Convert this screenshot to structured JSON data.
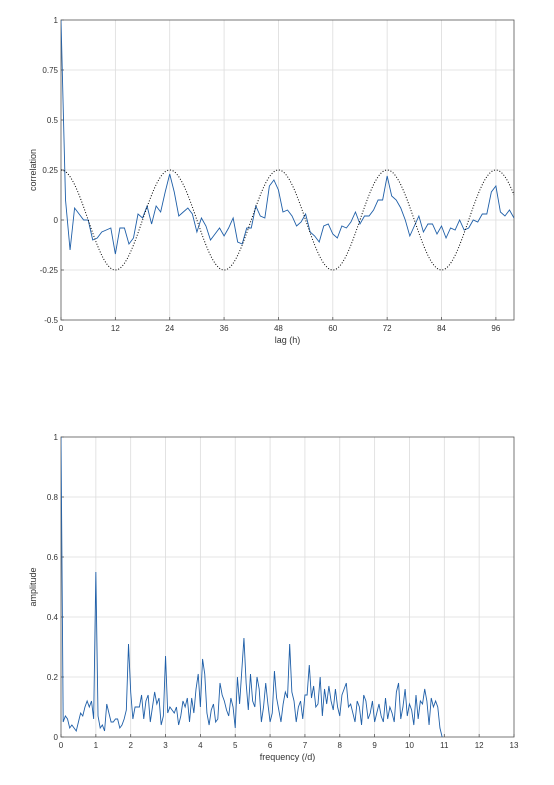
{
  "chart_data": [
    {
      "type": "line",
      "title": "",
      "xlabel": "lag (h)",
      "ylabel": "correlation",
      "xlim": [
        0,
        100
      ],
      "ylim": [
        -0.5,
        1
      ],
      "xticks": [
        0,
        12,
        24,
        36,
        48,
        60,
        72,
        84,
        96
      ],
      "yticks": [
        -0.5,
        -0.25,
        0,
        0.25,
        0.5,
        0.75,
        1
      ],
      "ytick_labels": [
        "-0.5",
        "-0.25",
        "0",
        "0.25",
        "0.5",
        "0.75",
        "1"
      ],
      "grid": true,
      "series": [
        {
          "style": "solid",
          "color": "#1f5fa8",
          "x": [
            0,
            1,
            2,
            3,
            4,
            5,
            6,
            7,
            8,
            9,
            10,
            11,
            12,
            13,
            14,
            15,
            16,
            17,
            18,
            19,
            20,
            21,
            22,
            23,
            24,
            25,
            26,
            27,
            28,
            29,
            30,
            31,
            32,
            33,
            34,
            35,
            36,
            37,
            38,
            39,
            40,
            41,
            42,
            43,
            44,
            45,
            46,
            47,
            48,
            49,
            50,
            51,
            52,
            53,
            54,
            55,
            56,
            57,
            58,
            59,
            60,
            61,
            62,
            63,
            64,
            65,
            66,
            67,
            68,
            69,
            70,
            71,
            72,
            73,
            74,
            75,
            76,
            77,
            78,
            79,
            80,
            81,
            82,
            83,
            84,
            85,
            86,
            87,
            88,
            89,
            90,
            91,
            92,
            93,
            94,
            95,
            96,
            97,
            98,
            99,
            100
          ],
          "values": [
            1,
            0.1,
            -0.15,
            0.06,
            0.03,
            0.0,
            0.0,
            -0.1,
            -0.09,
            -0.06,
            -0.05,
            -0.04,
            -0.17,
            -0.04,
            -0.04,
            -0.12,
            -0.09,
            0.03,
            0.01,
            0.07,
            -0.02,
            0.07,
            0.04,
            0.14,
            0.23,
            0.14,
            0.02,
            0.04,
            0.06,
            0.03,
            -0.06,
            0.01,
            -0.03,
            -0.1,
            -0.07,
            -0.04,
            -0.08,
            -0.04,
            0.01,
            -0.11,
            -0.12,
            -0.04,
            -0.04,
            0.07,
            0.02,
            0.01,
            0.17,
            0.2,
            0.15,
            0.04,
            0.05,
            0.02,
            -0.03,
            -0.01,
            0.03,
            -0.06,
            -0.08,
            -0.11,
            -0.03,
            -0.02,
            -0.07,
            -0.09,
            -0.03,
            -0.04,
            -0.01,
            0.04,
            -0.02,
            0.02,
            0.02,
            0.05,
            0.1,
            0.1,
            0.22,
            0.12,
            0.1,
            0.06,
            0.0,
            -0.08,
            -0.03,
            0.02,
            -0.06,
            -0.02,
            -0.02,
            -0.07,
            -0.03,
            -0.09,
            -0.04,
            -0.05,
            0.0,
            -0.05,
            -0.04,
            0.0,
            -0.01,
            0.03,
            0.03,
            0.14,
            0.17,
            0.04,
            0.02,
            0.05,
            0.01
          ]
        },
        {
          "style": "dotted",
          "color": "#000000",
          "function": "cos",
          "amplitude": 0.25,
          "period": 24
        }
      ]
    },
    {
      "type": "line",
      "title": "",
      "xlabel": "frequency (/d)",
      "ylabel": "amplitude",
      "xlim": [
        0,
        13
      ],
      "ylim": [
        0,
        1
      ],
      "xticks": [
        0,
        1,
        2,
        3,
        4,
        5,
        6,
        7,
        8,
        9,
        10,
        11,
        12,
        13
      ],
      "yticks": [
        0,
        0.2,
        0.4,
        0.6,
        0.8,
        1
      ],
      "ytick_labels": [
        "0",
        "0.2",
        "0.4",
        "0.6",
        "0.8",
        "1"
      ],
      "grid": true,
      "series": [
        {
          "style": "solid",
          "color": "#1f5fa8",
          "x_step": 0.0625,
          "values": [
            1.0,
            0.05,
            0.07,
            0.06,
            0.03,
            0.04,
            0.03,
            0.02,
            0.05,
            0.08,
            0.07,
            0.1,
            0.12,
            0.1,
            0.12,
            0.06,
            0.55,
            0.07,
            0.03,
            0.04,
            0.02,
            0.11,
            0.08,
            0.05,
            0.05,
            0.06,
            0.06,
            0.03,
            0.04,
            0.06,
            0.09,
            0.31,
            0.15,
            0.06,
            0.1,
            0.1,
            0.1,
            0.14,
            0.06,
            0.12,
            0.14,
            0.05,
            0.1,
            0.15,
            0.11,
            0.13,
            0.04,
            0.07,
            0.27,
            0.08,
            0.1,
            0.09,
            0.08,
            0.1,
            0.04,
            0.07,
            0.12,
            0.1,
            0.13,
            0.05,
            0.13,
            0.08,
            0.16,
            0.21,
            0.1,
            0.26,
            0.21,
            0.08,
            0.04,
            0.09,
            0.11,
            0.05,
            0.06,
            0.18,
            0.14,
            0.12,
            0.09,
            0.07,
            0.13,
            0.1,
            0.03,
            0.2,
            0.11,
            0.22,
            0.33,
            0.18,
            0.09,
            0.21,
            0.12,
            0.1,
            0.2,
            0.16,
            0.05,
            0.1,
            0.18,
            0.11,
            0.05,
            0.08,
            0.22,
            0.13,
            0.09,
            0.05,
            0.11,
            0.15,
            0.13,
            0.31,
            0.15,
            0.12,
            0.05,
            0.1,
            0.12,
            0.06,
            0.14,
            0.14,
            0.24,
            0.13,
            0.17,
            0.1,
            0.11,
            0.2,
            0.07,
            0.16,
            0.11,
            0.17,
            0.12,
            0.09,
            0.16,
            0.1,
            0.07,
            0.14,
            0.16,
            0.18,
            0.1,
            0.11,
            0.08,
            0.05,
            0.12,
            0.1,
            0.04,
            0.14,
            0.12,
            0.06,
            0.08,
            0.12,
            0.05,
            0.08,
            0.11,
            0.07,
            0.05,
            0.13,
            0.06,
            0.1,
            0.08,
            0.05,
            0.15,
            0.18,
            0.06,
            0.1,
            0.16,
            0.07,
            0.11,
            0.09,
            0.04,
            0.14,
            0.06,
            0.12,
            0.11,
            0.16,
            0.12,
            0.04,
            0.13,
            0.1,
            0.12,
            0.1,
            0.03,
            0.0
          ]
        }
      ]
    }
  ]
}
